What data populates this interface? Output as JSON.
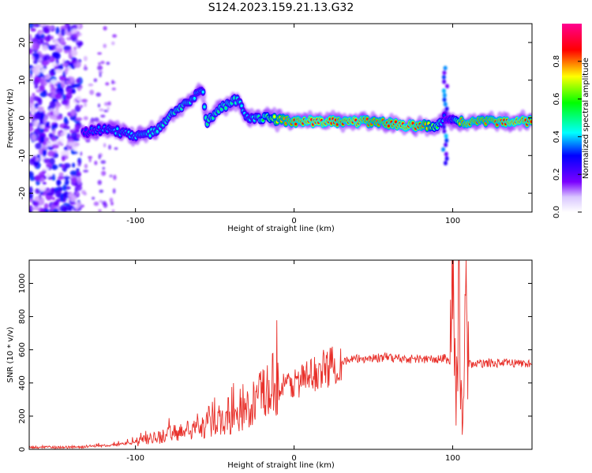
{
  "title": "S124.2023.159.21.13.G32",
  "chart_data": [
    {
      "type": "heatmap",
      "xlabel": "Height of straight line (km)",
      "ylabel": "Frequency (Hz)",
      "xlim": [
        -167,
        150
      ],
      "ylim": [
        -25,
        25
      ],
      "x_ticks": [
        -100,
        0,
        100
      ],
      "y_ticks": [
        -20,
        -10,
        0,
        10,
        20
      ],
      "colorbar": {
        "label": "Normalized spectral amplitude",
        "range": [
          0,
          1
        ],
        "ticks": [
          "0.0",
          "0.2",
          "0.4",
          "0.6",
          "0.8"
        ],
        "colors": [
          "#ffffff",
          "#7b00ff",
          "#0000ff",
          "#00ffff",
          "#00ff00",
          "#ffff00",
          "#ff0000",
          "#ff0090"
        ]
      },
      "ridge": {
        "x": [
          -133,
          -125,
          -115,
          -105,
          -95,
          -85,
          -75,
          -65,
          -58,
          -55,
          -50,
          -45,
          -40,
          -35,
          -30,
          -25,
          -20,
          -10,
          0,
          10,
          20,
          30,
          40,
          50,
          60,
          70,
          80,
          90,
          95,
          100,
          105,
          110,
          120,
          130,
          140,
          150
        ],
        "y": [
          -4,
          -3,
          -3.5,
          -4,
          -5,
          -3,
          2,
          5,
          8,
          -1,
          1,
          3,
          4,
          5,
          0,
          0,
          0,
          -0.5,
          -1,
          -1,
          -1,
          -1,
          -1,
          -1,
          -1.5,
          -2,
          -2,
          -2.5,
          0,
          0,
          -1,
          -1,
          -1,
          -1,
          -1,
          -1
        ],
        "amplitude": [
          0.3,
          0.35,
          0.4,
          0.4,
          0.45,
          0.45,
          0.5,
          0.45,
          0.4,
          0.5,
          0.5,
          0.5,
          0.5,
          0.45,
          0.4,
          0.45,
          0.55,
          0.75,
          0.85,
          0.9,
          0.9,
          0.85,
          0.9,
          0.8,
          0.85,
          0.9,
          0.85,
          0.6,
          0.3,
          0.35,
          0.8,
          0.85,
          0.8,
          0.85,
          0.9,
          0.85
        ]
      }
    },
    {
      "type": "line",
      "xlabel": "Height of straight line (km)",
      "ylabel": "SNR (10 * v/v)",
      "xlim": [
        -167,
        150
      ],
      "ylim": [
        0,
        1140
      ],
      "x_ticks": [
        -100,
        0,
        100
      ],
      "y_ticks": [
        0,
        200,
        400,
        600,
        800,
        1000
      ],
      "color": "#e8302a",
      "series": [
        {
          "x": [
            -167,
            -150,
            -130,
            -115,
            -100,
            -90,
            -80,
            -70,
            -60,
            -50,
            -40,
            -30,
            -25,
            -20,
            -15,
            -10,
            -5,
            0,
            10,
            20,
            30,
            40,
            50,
            60,
            70,
            80,
            90,
            95,
            98,
            100,
            102,
            104,
            106,
            108,
            110,
            115,
            120,
            130,
            140,
            150
          ],
          "y": [
            10,
            12,
            15,
            25,
            40,
            60,
            90,
            110,
            120,
            150,
            180,
            230,
            270,
            330,
            350,
            370,
            380,
            400,
            440,
            490,
            530,
            545,
            550,
            555,
            545,
            545,
            540,
            550,
            530,
            1100,
            250,
            900,
            100,
            820,
            520,
            510,
            520,
            520,
            520,
            515
          ]
        }
      ]
    }
  ]
}
